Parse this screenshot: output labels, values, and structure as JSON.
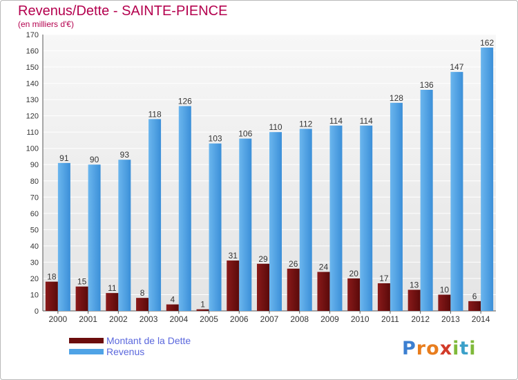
{
  "title": "Revenus/Dette - SAINTE-PIENCE",
  "subtitle": "(en milliers d'€)",
  "colors": {
    "title": "#b4004e",
    "dette": "#7a1010",
    "revenus": "#4fa3e6",
    "legend_text": "#5a67dd",
    "axis_text": "#333333"
  },
  "legend": [
    {
      "label": "Montant de la Dette",
      "color": "#6b0d0d"
    },
    {
      "label": "Revenus",
      "color": "#4fa3e6"
    }
  ],
  "logo": {
    "letters": [
      {
        "ch": "P",
        "color": "#3b7fd1"
      },
      {
        "ch": "r",
        "color": "#e87d1e"
      },
      {
        "ch": "o",
        "color": "#e87d1e"
      },
      {
        "ch": "x",
        "color": "#d23b2a"
      },
      {
        "ch": "i",
        "color": "#7fb93a"
      },
      {
        "ch": "t",
        "color": "#3ba0c9"
      },
      {
        "ch": "i",
        "color": "#7fb93a"
      }
    ]
  },
  "chart_data": {
    "type": "bar",
    "categories": [
      "2000",
      "2001",
      "2002",
      "2003",
      "2004",
      "2005",
      "2006",
      "2007",
      "2008",
      "2009",
      "2010",
      "2011",
      "2012",
      "2013",
      "2014"
    ],
    "series": [
      {
        "name": "Montant de la Dette",
        "values": [
          18,
          15,
          11,
          8,
          4,
          1,
          31,
          29,
          26,
          24,
          20,
          17,
          13,
          10,
          6
        ]
      },
      {
        "name": "Revenus",
        "values": [
          91,
          90,
          93,
          118,
          126,
          103,
          106,
          110,
          112,
          114,
          114,
          128,
          136,
          147,
          162
        ]
      }
    ],
    "ylim": [
      0,
      170
    ],
    "yticks": [
      0,
      10,
      20,
      30,
      40,
      50,
      60,
      70,
      80,
      90,
      100,
      110,
      120,
      130,
      140,
      150,
      160,
      170
    ],
    "grid": true,
    "legend_position": "bottom-left"
  }
}
